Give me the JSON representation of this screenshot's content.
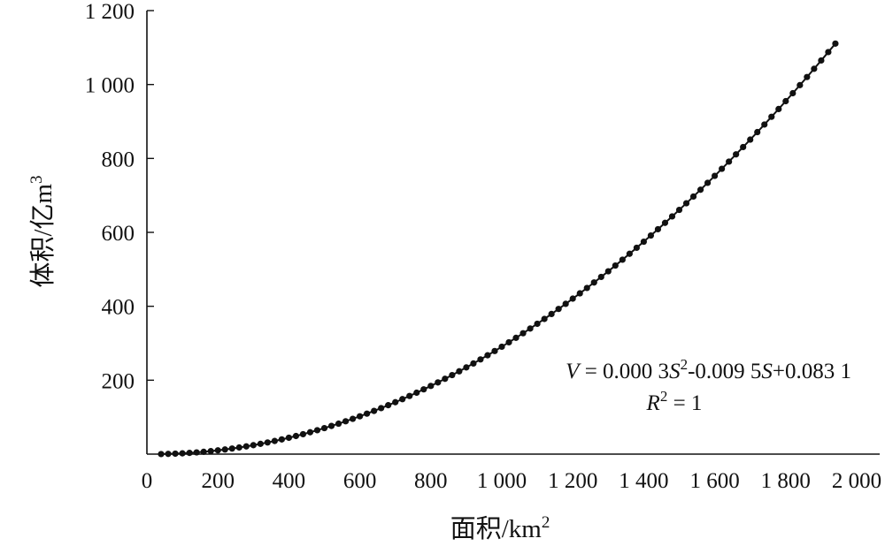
{
  "chart_data": {
    "type": "scatter",
    "title": "",
    "xlabel": "面积/km",
    "xlabel_sup": "2",
    "ylabel": "体积/亿m",
    "ylabel_sup": "3",
    "xlim": [
      0,
      2000
    ],
    "ylim": [
      0,
      1200
    ],
    "x_ticks": [
      0,
      200,
      400,
      600,
      800,
      1000,
      1200,
      1400,
      1600,
      1800,
      2000
    ],
    "x_tick_labels": [
      "0",
      "200",
      "400",
      "600",
      "800",
      "1 000",
      "1 200",
      "1 400",
      "1 600",
      "1 800",
      "2 000"
    ],
    "y_ticks": [
      200,
      400,
      600,
      800,
      1000,
      1200
    ],
    "y_tick_labels": [
      "200",
      "400",
      "600",
      "800",
      "1 000",
      "1 200"
    ],
    "grid": false,
    "x_start": 40,
    "x_end": 1940,
    "x_step": 20,
    "series": [
      {
        "equation": "V = 0.000 3S²-0.009 5S+0.083 1",
        "coefficients": [
          0.0003,
          -0.0095,
          0.0831
        ]
      }
    ],
    "annotations": {
      "equation_prefix": "V",
      "equation_mid1": " = 0.000 3",
      "equation_s1": "S",
      "equation_sup": "2",
      "equation_mid2": "-0.009 5",
      "equation_s2": "S",
      "equation_tail": "+0.083 1",
      "r2_prefix": "R",
      "r2_sup": "2",
      "r2_tail": " = 1"
    }
  }
}
